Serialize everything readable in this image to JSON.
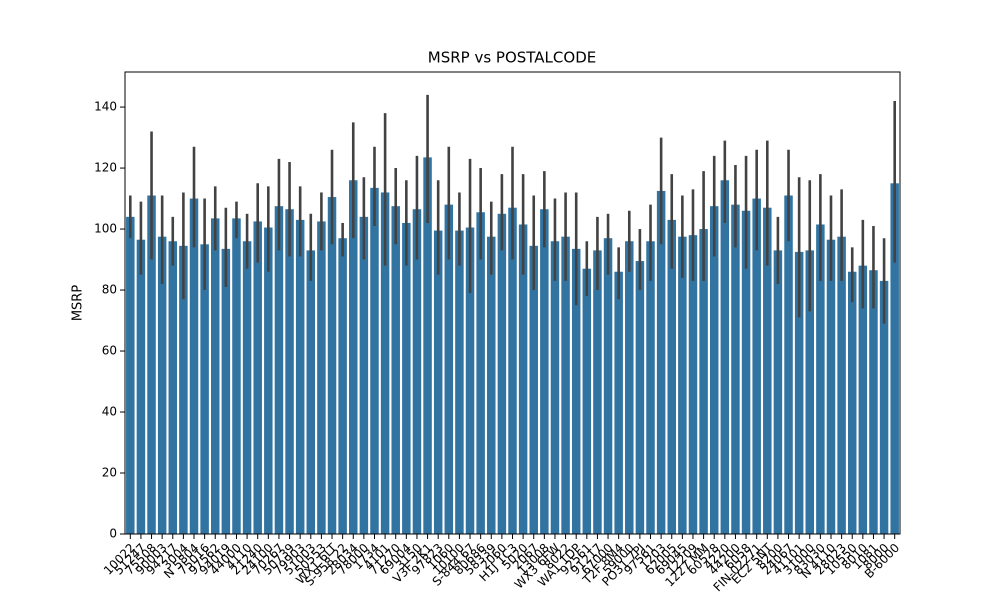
{
  "chart_data": {
    "type": "bar",
    "title": "MSRP vs POSTALCODE",
    "ylabel": "MSRP",
    "categories": [
      "10022",
      "51247",
      "75508",
      "90003",
      "94217",
      "3004",
      "N 5804",
      "75016",
      "97562",
      "94019",
      "44000",
      "4110",
      "21240",
      "24100",
      "70267",
      "50739",
      "79903",
      "51003",
      "50553",
      "WX1 6LT",
      "S-958 22",
      "28034",
      "78000",
      "1734",
      "4101",
      "71270",
      "69004",
      "3150",
      "V3F 2K1",
      "97823",
      "1060",
      "10100",
      "S-844 67",
      "80686",
      "58339",
      "2060",
      "H1J 1C3",
      "5020",
      "2067",
      "13008",
      "WX3 6FW",
      "8022",
      "WA1 1DP",
      "92561",
      "91217",
      "67000",
      "T2F 8M4",
      "59000",
      "PO31 7PJ",
      "97561",
      "1203",
      "62005",
      "69045",
      "12209",
      "1227 MM",
      "60528",
      "4220",
      "44200",
      "6058",
      "FIN-02271",
      "EC2 5NT",
      "8200",
      "24067",
      "41101",
      "31000",
      "83030",
      "N 4110",
      "28023",
      "10550",
      "8010",
      "1081",
      "8000",
      "B-6000"
    ],
    "values": [
      104,
      96.5,
      111,
      97.5,
      96,
      94.5,
      110,
      95,
      103.5,
      93.5,
      103.5,
      96,
      102.5,
      100.5,
      107.5,
      106.5,
      103,
      93,
      102.5,
      110.5,
      97,
      116,
      104,
      113.5,
      112,
      107.5,
      102,
      106.5,
      123.5,
      99.5,
      108,
      99.5,
      100.5,
      105.5,
      97.5,
      105,
      107,
      101.5,
      94.5,
      106.5,
      96,
      97.5,
      93.5,
      87,
      93,
      97,
      86,
      96,
      89.5,
      96,
      112.5,
      103,
      97.5,
      98,
      100,
      107.5,
      116,
      108,
      106,
      110,
      107,
      93,
      111,
      92.5,
      93,
      101.5,
      96.5,
      97.5,
      86,
      88,
      86.5,
      83,
      115
    ],
    "ci_lower": [
      97,
      85,
      90,
      82,
      88,
      77,
      94,
      80,
      93,
      81,
      97,
      87,
      89,
      86,
      93,
      91,
      91,
      83,
      93,
      95,
      91,
      97,
      90,
      101,
      88,
      95,
      88,
      90,
      102,
      85,
      90,
      88,
      79,
      90,
      85,
      93,
      90,
      85,
      80,
      94,
      83,
      83,
      75,
      78,
      80,
      85,
      77,
      86,
      80,
      83,
      95,
      87,
      84,
      83,
      83,
      91,
      102,
      94,
      87,
      93,
      88,
      82,
      96,
      71,
      73,
      83,
      83,
      83,
      76,
      74,
      74,
      69,
      89
    ],
    "ci_upper": [
      111,
      109,
      132,
      111,
      104,
      112,
      127,
      110,
      114,
      107,
      109,
      105,
      115,
      114,
      123,
      122,
      114,
      105,
      112,
      126,
      102,
      135,
      117,
      127,
      138,
      120,
      116,
      124,
      144,
      116,
      127,
      112,
      123,
      120,
      109,
      118,
      127,
      118,
      111,
      119,
      110,
      112,
      112,
      96,
      104,
      105,
      94,
      106,
      100,
      108,
      130,
      118,
      111,
      113,
      119,
      124,
      129,
      121,
      124,
      126,
      129,
      104,
      126,
      117,
      116,
      118,
      111,
      113,
      94,
      103,
      101,
      97,
      142
    ],
    "color": "#3274a1",
    "error_color": "#424242",
    "ylim": [
      0,
      151.5
    ],
    "yticks": [
      0,
      20,
      40,
      60,
      80,
      100,
      120,
      140
    ]
  }
}
